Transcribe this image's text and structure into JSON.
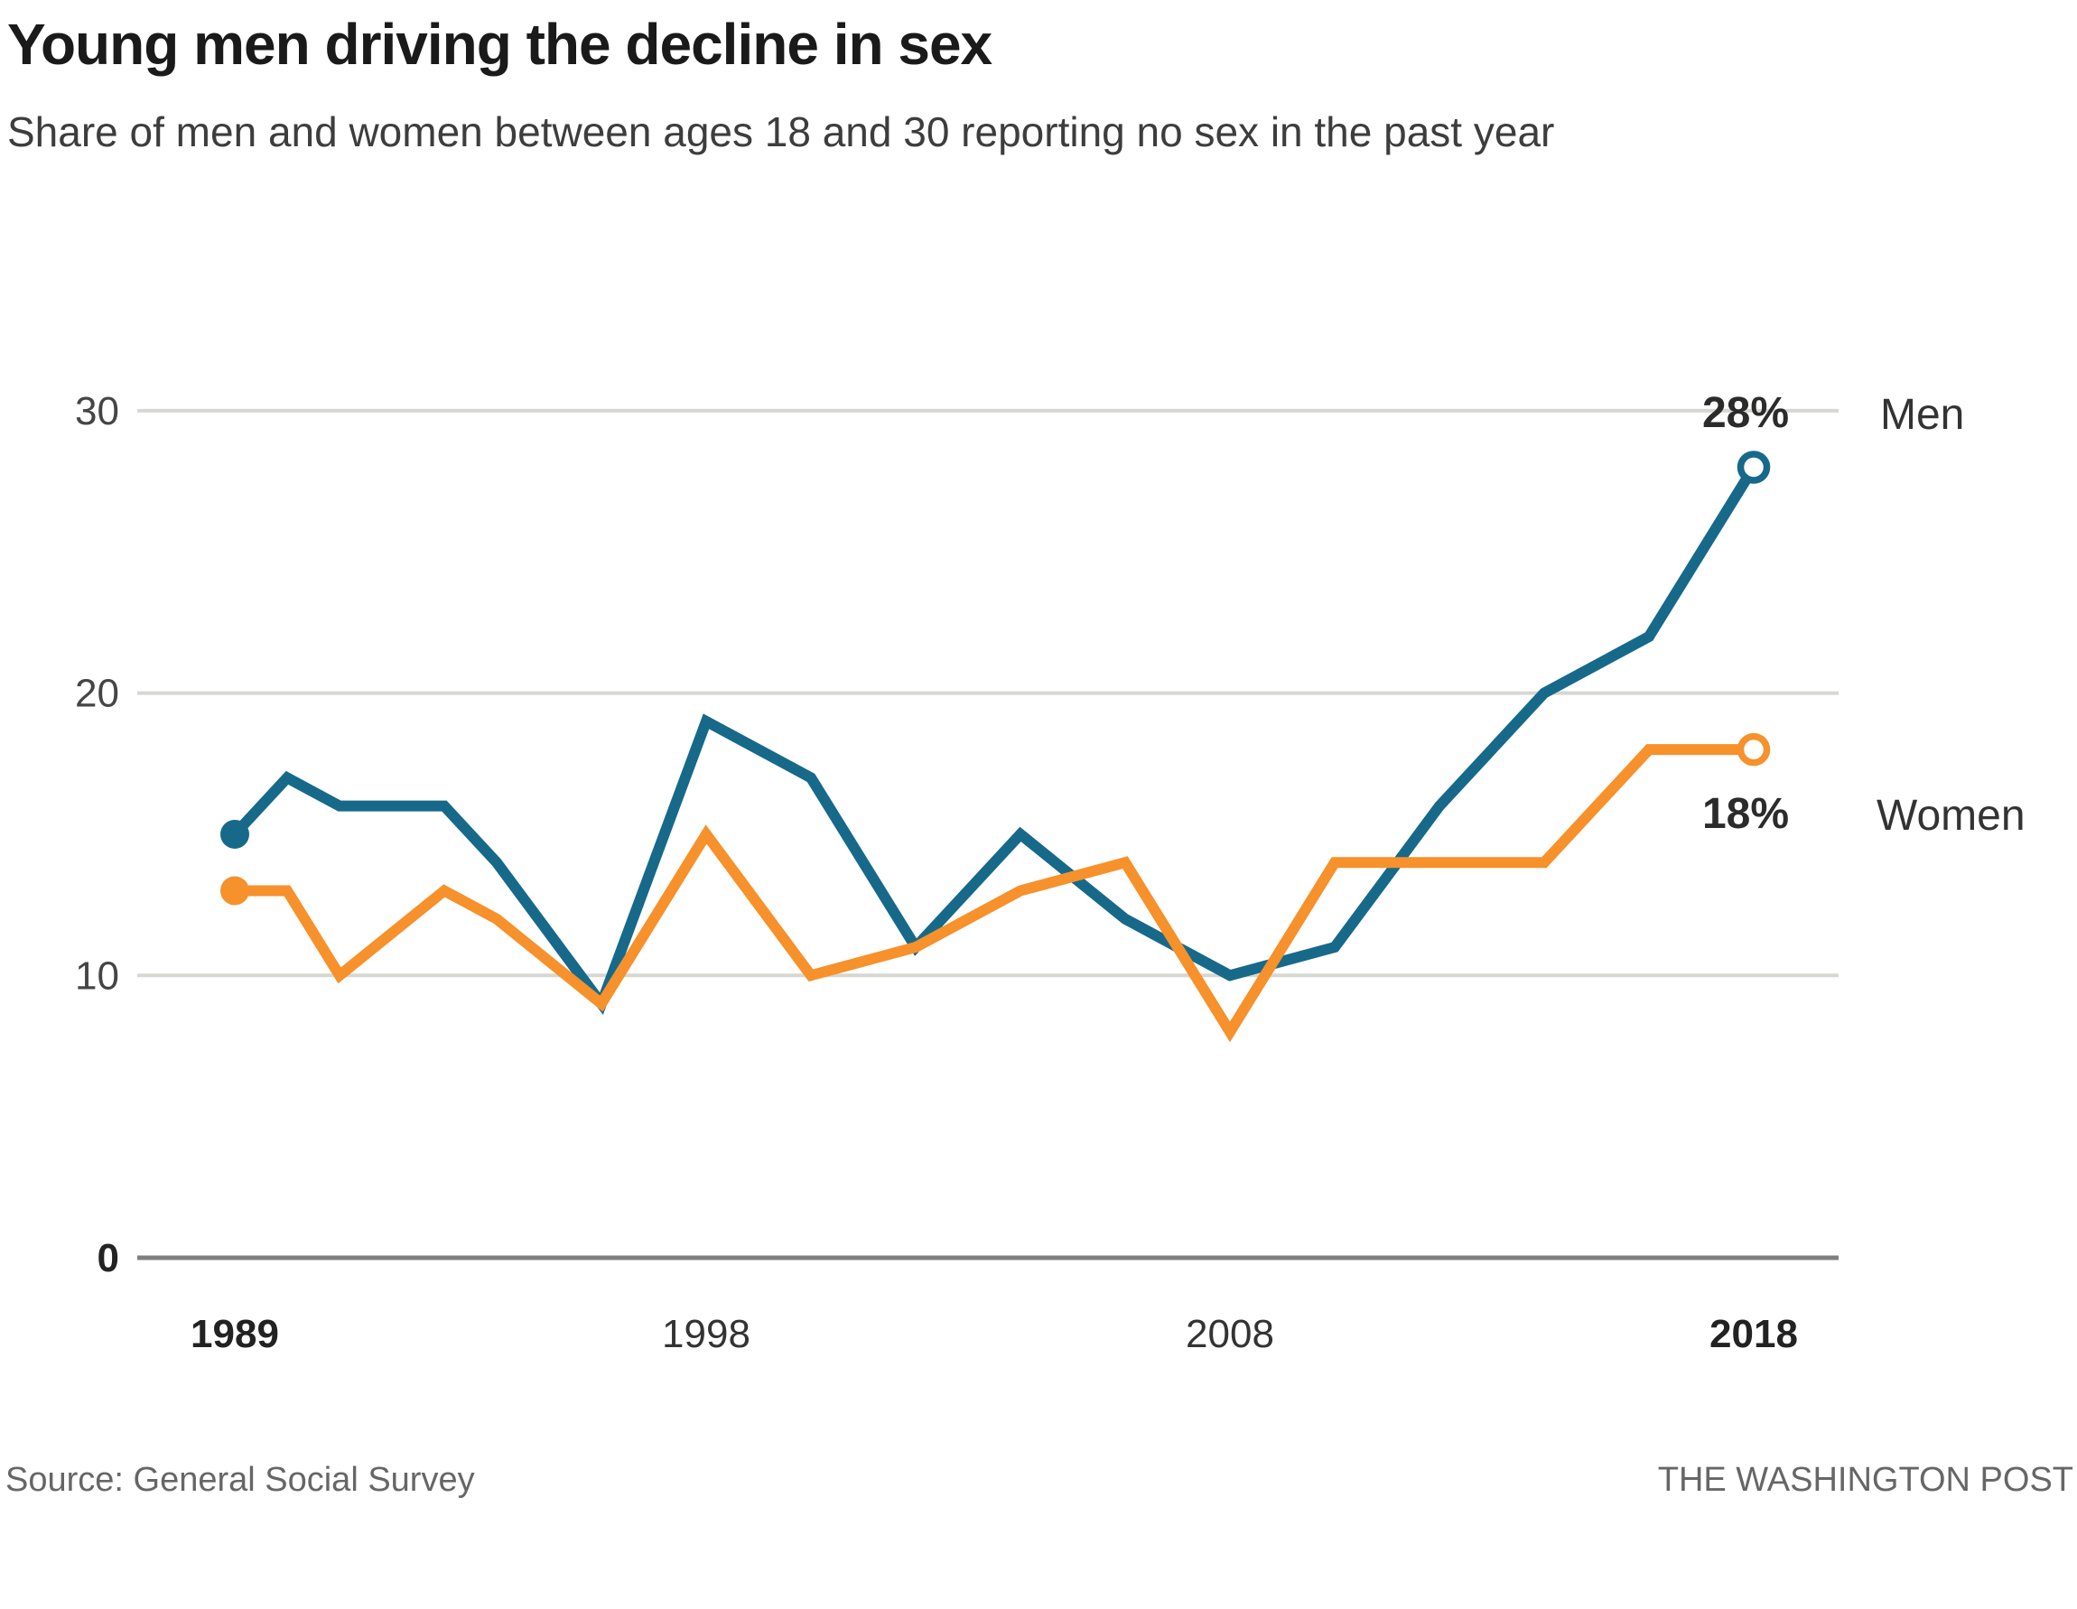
{
  "header": {
    "title": "Young men driving the decline in sex",
    "subtitle": "Share of men and women between ages 18 and 30 reporting no sex in the past year"
  },
  "footer": {
    "source": "Source: General Social Survey",
    "credit": "THE WASHINGTON POST"
  },
  "annotations": {
    "men_value_label": "28%",
    "men_series_label": "Men",
    "women_value_label": "18%",
    "women_series_label": "Women"
  },
  "chart_data": {
    "type": "line",
    "title": "Young men driving the decline in sex",
    "subtitle": "Share of men and women between ages 18 and 30 reporting no sex in the past year",
    "x": [
      1989,
      1990,
      1991,
      1993,
      1994,
      1996,
      1998,
      2000,
      2002,
      2004,
      2006,
      2008,
      2010,
      2012,
      2014,
      2016,
      2018
    ],
    "series": [
      {
        "name": "Men",
        "color": "#17698a",
        "values": [
          15,
          17,
          16,
          16,
          14,
          9,
          19,
          17,
          11,
          15,
          12,
          10,
          11,
          16,
          20,
          22,
          28
        ],
        "end_value": 28,
        "end_label": "28%",
        "start_marker": "filled-dot",
        "end_marker": "open-ring"
      },
      {
        "name": "Women",
        "color": "#f6912c",
        "values": [
          13,
          13,
          10,
          13,
          12,
          9,
          15,
          10,
          11,
          13,
          14,
          8,
          14,
          14,
          14,
          18,
          18
        ],
        "end_value": 18,
        "end_label": "18%",
        "start_marker": "filled-dot",
        "end_marker": "open-ring"
      }
    ],
    "xlabel": "",
    "ylabel": "",
    "ylim": [
      0,
      30
    ],
    "yticks": [
      0,
      10,
      20,
      30
    ],
    "xticks": [
      1989,
      1998,
      2008,
      2018
    ],
    "grid": "horizontal",
    "grid_color": "#d7d7d2",
    "zero_axis_color": "#7f7f7f",
    "tick_color": "#454545",
    "bold_tick_color": "#222222",
    "legend_position": "right-of-line-ends"
  }
}
